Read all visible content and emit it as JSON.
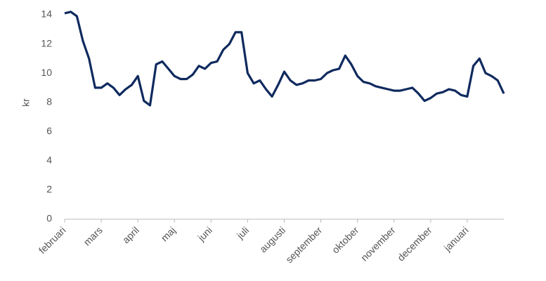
{
  "chart_data": {
    "type": "line",
    "ylabel": "kr",
    "categories": [
      "februari",
      null,
      null,
      null,
      null,
      null,
      "mars",
      null,
      null,
      null,
      null,
      null,
      "april",
      null,
      null,
      null,
      null,
      null,
      "maj",
      null,
      null,
      null,
      null,
      null,
      "juni",
      null,
      null,
      null,
      null,
      null,
      "juli",
      null,
      null,
      null,
      null,
      null,
      "augusti",
      null,
      null,
      null,
      null,
      null,
      "september",
      null,
      null,
      null,
      null,
      null,
      "oktober",
      null,
      null,
      null,
      null,
      null,
      "november",
      null,
      null,
      null,
      null,
      null,
      "december",
      null,
      null,
      null,
      null,
      null,
      "januari",
      null,
      null,
      null,
      null,
      null,
      null
    ],
    "series": [
      {
        "color": "#0f2a5e",
        "values": [
          14.1,
          14.2,
          13.9,
          12.2,
          11.0,
          9.0,
          9.0,
          9.3,
          9.0,
          8.5,
          8.9,
          9.2,
          9.8,
          8.1,
          7.8,
          10.6,
          10.8,
          10.3,
          9.8,
          9.6,
          9.6,
          9.9,
          10.5,
          10.3,
          10.7,
          10.8,
          11.6,
          12.0,
          12.8,
          12.8,
          10.0,
          9.3,
          9.5,
          8.9,
          8.4,
          9.2,
          10.1,
          9.5,
          9.2,
          9.3,
          9.5,
          9.5,
          9.6,
          10.0,
          10.2,
          10.3,
          11.2,
          10.6,
          9.8,
          9.4,
          9.3,
          9.1,
          9.0,
          8.9,
          8.8,
          8.8,
          8.9,
          9.0,
          8.6,
          8.1,
          8.3,
          8.6,
          8.7,
          8.9,
          8.8,
          8.5,
          8.4,
          10.5,
          11.0,
          10.0,
          9.8,
          9.5,
          8.6
        ]
      }
    ],
    "ylim": [
      0,
      14
    ],
    "yticks": [
      0,
      2,
      4,
      6,
      8,
      10,
      12,
      14
    ],
    "grid": false
  }
}
